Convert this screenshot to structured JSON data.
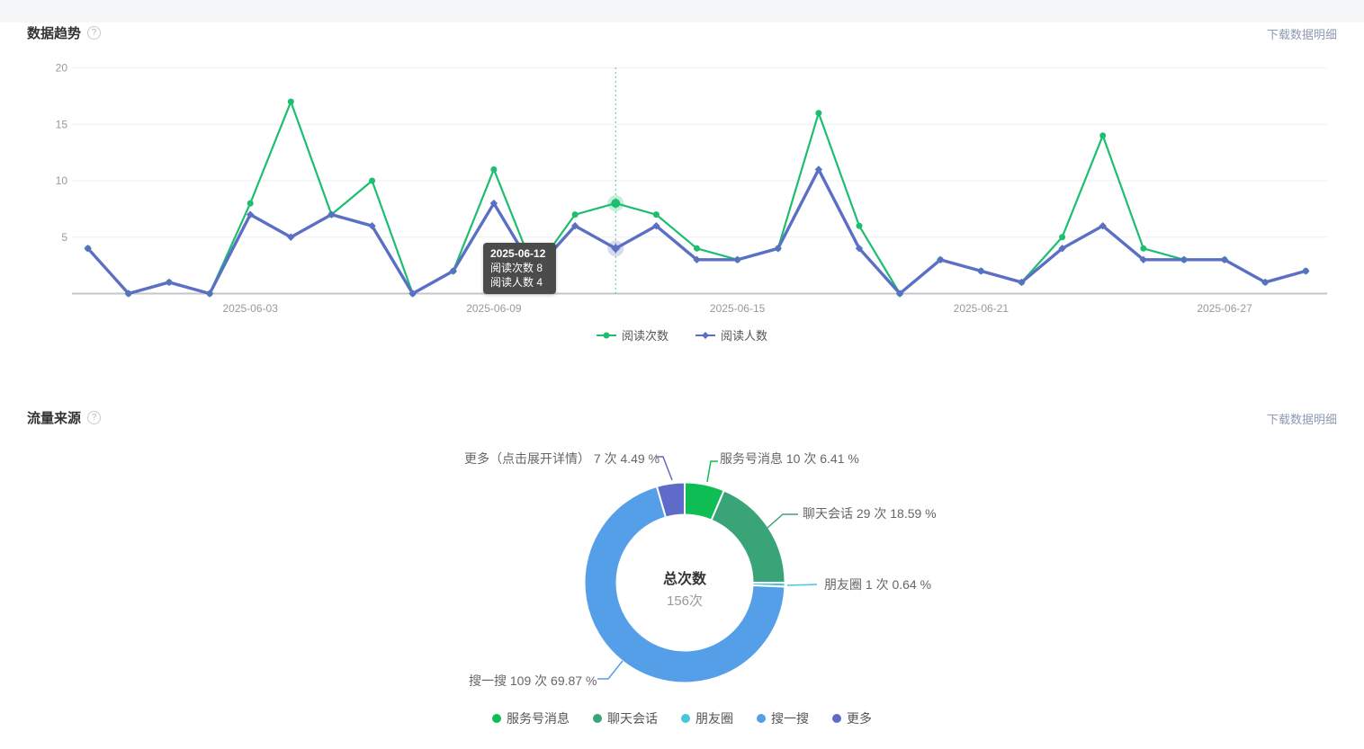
{
  "trend_section": {
    "title": "数据趋势",
    "help_icon": "question-circle-icon",
    "download_label": "下载数据明细"
  },
  "source_section": {
    "title": "流量来源",
    "help_icon": "question-circle-icon",
    "download_label": "下载数据明细"
  },
  "chart_data": [
    {
      "type": "line",
      "title": "数据趋势",
      "x": [
        "2025-05-30",
        "2025-05-31",
        "2025-06-01",
        "2025-06-02",
        "2025-06-03",
        "2025-06-04",
        "2025-06-05",
        "2025-06-06",
        "2025-06-07",
        "2025-06-08",
        "2025-06-09",
        "2025-06-10",
        "2025-06-11",
        "2025-06-12",
        "2025-06-13",
        "2025-06-14",
        "2025-06-15",
        "2025-06-16",
        "2025-06-17",
        "2025-06-18",
        "2025-06-19",
        "2025-06-20",
        "2025-06-21",
        "2025-06-22",
        "2025-06-23",
        "2025-06-24",
        "2025-06-25",
        "2025-06-26",
        "2025-06-27",
        "2025-06-28",
        "2025-06-29"
      ],
      "x_tick_labels": [
        "2025-06-03",
        "2025-06-09",
        "2025-06-15",
        "2025-06-21",
        "2025-06-27"
      ],
      "ylim": [
        0,
        20
      ],
      "yticks": [
        5,
        10,
        15,
        20
      ],
      "grid": true,
      "legend_position": "bottom",
      "series": [
        {
          "name": "阅读次数",
          "color": "#1dbe6f",
          "marker": "circle",
          "values": [
            4,
            0,
            1,
            0,
            8,
            17,
            7,
            10,
            0,
            2,
            11,
            2,
            7,
            8,
            7,
            4,
            3,
            4,
            16,
            6,
            0,
            3,
            2,
            1,
            5,
            14,
            4,
            3,
            3,
            1,
            2
          ]
        },
        {
          "name": "阅读人数",
          "color": "#5b6fc5",
          "marker": "diamond",
          "values": [
            4,
            0,
            1,
            0,
            7,
            5,
            7,
            6,
            0,
            2,
            8,
            2,
            6,
            4,
            6,
            3,
            3,
            4,
            11,
            4,
            0,
            3,
            2,
            1,
            4,
            6,
            3,
            3,
            3,
            1,
            2
          ]
        }
      ],
      "tooltip": {
        "date": "2025-06-12",
        "hover_index": 13,
        "rows": [
          {
            "label": "阅读次数",
            "value": "8"
          },
          {
            "label": "阅读人数",
            "value": "4"
          }
        ]
      }
    },
    {
      "type": "pie",
      "title": "流量来源",
      "center_label": "总次数",
      "center_value": "156次",
      "slices": [
        {
          "name": "服务号消息",
          "count": 10,
          "pct": 6.41,
          "color": "#0fbd55",
          "label": "服务号消息 10 次 6.41 %"
        },
        {
          "name": "聊天会话",
          "count": 29,
          "pct": 18.59,
          "color": "#39a478",
          "label": "聊天会话 29 次 18.59 %"
        },
        {
          "name": "朋友圈",
          "count": 1,
          "pct": 0.64,
          "color": "#49c6dc",
          "label": "朋友圈 1 次 0.64 %"
        },
        {
          "name": "搜一搜",
          "count": 109,
          "pct": 69.87,
          "color": "#549fe8",
          "label": "搜一搜 109 次 69.87 %"
        },
        {
          "name": "更多",
          "count": 7,
          "pct": 4.49,
          "color": "#5f6bc9",
          "label": "更多（点击展开详情） 7 次 4.49 %"
        }
      ],
      "legend": [
        "服务号消息",
        "聊天会话",
        "朋友圈",
        "搜一搜",
        "更多"
      ]
    }
  ]
}
